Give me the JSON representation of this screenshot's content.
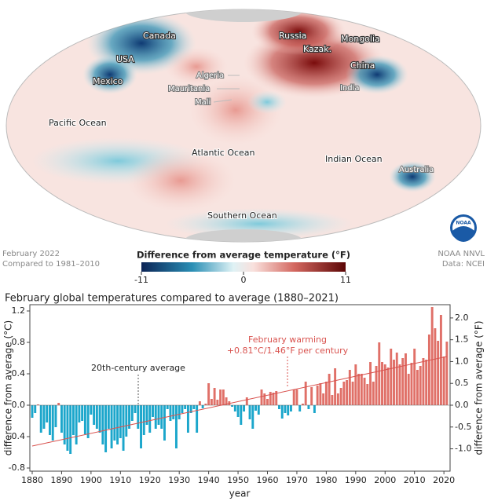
{
  "map": {
    "labels": [
      "Canada",
      "USA",
      "Mexico",
      "Russia",
      "Kazak.",
      "Mongolia",
      "China",
      "India",
      "Algeria",
      "Mauritania",
      "Mali",
      "Pacific Ocean",
      "Atlantic Ocean",
      "Indian Ocean",
      "Australia",
      "Southern Ocean"
    ],
    "caption_left": [
      "February 2022",
      "Compared to 1981–2010"
    ],
    "caption_right": [
      "NOAA NNVL",
      "Data: NCEI"
    ],
    "logo_text": "NOAA",
    "colorbar": {
      "title": "Difference from average temperature (°F)",
      "range": [
        -11,
        11
      ],
      "ticks": [
        -11,
        0,
        11
      ]
    }
  },
  "chart_data": {
    "type": "bar",
    "title": "February global temperatures compared to average (1880–2021)",
    "ylabel": "difference from average (°C)",
    "y2label": "difference from average (°F)",
    "xlabel": "year",
    "x": [
      1880,
      1881,
      1882,
      1883,
      1884,
      1885,
      1886,
      1887,
      1888,
      1889,
      1890,
      1891,
      1892,
      1893,
      1894,
      1895,
      1896,
      1897,
      1898,
      1899,
      1900,
      1901,
      1902,
      1903,
      1904,
      1905,
      1906,
      1907,
      1908,
      1909,
      1910,
      1911,
      1912,
      1913,
      1914,
      1915,
      1916,
      1917,
      1918,
      1919,
      1920,
      1921,
      1922,
      1923,
      1924,
      1925,
      1926,
      1927,
      1928,
      1929,
      1930,
      1931,
      1932,
      1933,
      1934,
      1935,
      1936,
      1937,
      1938,
      1939,
      1940,
      1941,
      1942,
      1943,
      1944,
      1945,
      1946,
      1947,
      1948,
      1949,
      1950,
      1951,
      1952,
      1953,
      1954,
      1955,
      1956,
      1957,
      1958,
      1959,
      1960,
      1961,
      1962,
      1963,
      1964,
      1965,
      1966,
      1967,
      1968,
      1969,
      1970,
      1971,
      1972,
      1973,
      1974,
      1975,
      1976,
      1977,
      1978,
      1979,
      1980,
      1981,
      1982,
      1983,
      1984,
      1985,
      1986,
      1987,
      1988,
      1989,
      1990,
      1991,
      1992,
      1993,
      1994,
      1995,
      1996,
      1997,
      1998,
      1999,
      2000,
      2001,
      2002,
      2003,
      2004,
      2005,
      2006,
      2007,
      2008,
      2009,
      2010,
      2011,
      2012,
      2013,
      2014,
      2015,
      2016,
      2017,
      2018,
      2019,
      2020,
      2021
    ],
    "values": [
      -0.16,
      -0.1,
      0.01,
      -0.35,
      -0.3,
      -0.22,
      -0.38,
      -0.45,
      -0.28,
      0.03,
      -0.35,
      -0.5,
      -0.58,
      -0.62,
      -0.38,
      -0.5,
      -0.22,
      -0.2,
      -0.37,
      -0.42,
      -0.12,
      -0.25,
      -0.3,
      -0.35,
      -0.5,
      -0.6,
      -0.3,
      -0.55,
      -0.45,
      -0.5,
      -0.42,
      -0.58,
      -0.4,
      -0.3,
      -0.2,
      -0.1,
      -0.3,
      -0.55,
      -0.38,
      -0.25,
      -0.35,
      -0.15,
      -0.3,
      -0.25,
      -0.3,
      -0.45,
      -0.05,
      -0.2,
      -0.18,
      -0.55,
      -0.18,
      -0.1,
      -0.05,
      -0.35,
      -0.1,
      -0.05,
      -0.35,
      0.05,
      -0.04,
      0.02,
      0.28,
      0.08,
      0.22,
      0.07,
      0.2,
      0.2,
      0.1,
      0.05,
      -0.02,
      -0.08,
      -0.15,
      -0.25,
      -0.08,
      0.1,
      -0.18,
      -0.3,
      -0.07,
      -0.12,
      0.2,
      0.15,
      0.08,
      0.17,
      0.16,
      0.18,
      -0.05,
      -0.17,
      -0.1,
      -0.13,
      -0.08,
      0.2,
      0.2,
      -0.08,
      0.02,
      0.3,
      -0.05,
      0.23,
      -0.1,
      0.25,
      0.28,
      0.15,
      0.3,
      0.4,
      0.13,
      0.47,
      0.15,
      0.22,
      0.3,
      0.32,
      0.45,
      0.3,
      0.52,
      0.4,
      0.4,
      0.35,
      0.27,
      0.55,
      0.3,
      0.5,
      0.8,
      0.55,
      0.52,
      0.48,
      0.72,
      0.58,
      0.67,
      0.52,
      0.6,
      0.66,
      0.4,
      0.54,
      0.72,
      0.45,
      0.5,
      0.6,
      0.58,
      0.9,
      1.25,
      0.98,
      0.82,
      1.15,
      0.62,
      0.81
    ],
    "color_positive": "#e07068",
    "color_negative": "#1ba6cb",
    "xlim": [
      1879.2,
      2022.1
    ],
    "xticks": [
      1880,
      1890,
      1900,
      1910,
      1920,
      1930,
      1940,
      1950,
      1960,
      1970,
      1980,
      1990,
      2000,
      2010,
      2020
    ],
    "ylim": [
      -0.84,
      1.28
    ],
    "yticks": [
      -0.8,
      -0.4,
      {
        "value": 0,
        "label": "0.0"
      },
      0.4,
      0.8,
      1.2
    ],
    "y2lim": [
      -1.512,
      2.304
    ],
    "y2ticks": [
      {
        "value": -1,
        "label": "-1.0"
      },
      -0.5,
      {
        "value": 0,
        "label": "0.0"
      },
      0.5,
      {
        "value": 1,
        "label": "1.0"
      },
      1.5,
      {
        "value": 2,
        "label": "2.0"
      }
    ],
    "trend": {
      "x": [
        1880,
        2021
      ],
      "values": [
        -0.52,
        0.62
      ],
      "color": "#d9534f"
    },
    "annotations": [
      "20th-century average",
      "February warming",
      "+0.81°C/1.46°F per century"
    ]
  }
}
